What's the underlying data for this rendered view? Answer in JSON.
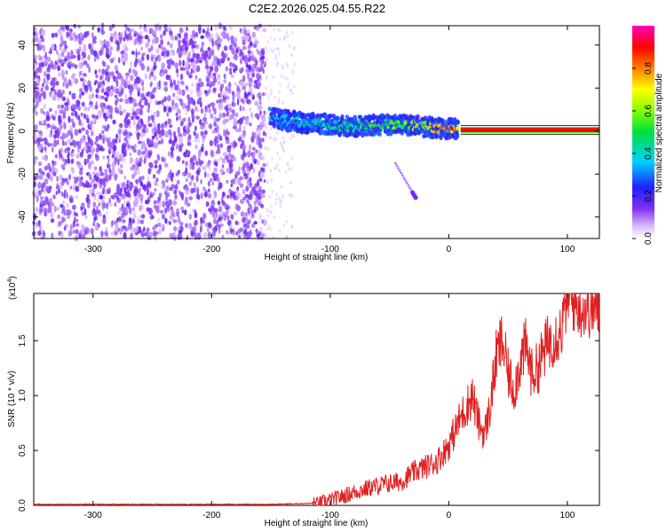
{
  "title": "C2E2.2026.025.04.55.R22",
  "chart_data": [
    {
      "type": "heatmap",
      "xlabel": "Height of straight line (km)",
      "ylabel": "Frequency (Hz)",
      "xlim": [
        -350,
        127
      ],
      "ylim": [
        -50,
        49
      ],
      "xticks": [
        -300,
        -200,
        -100,
        0,
        100
      ],
      "yticks": [
        -40,
        -20,
        0,
        20,
        40
      ],
      "colorbar": {
        "label": "Normalized spectral amplitude",
        "range": [
          0,
          1
        ],
        "ticks": [
          "0.0",
          "0.2",
          "0.4",
          "0.6",
          "0.8"
        ],
        "colormap": "rainbow (white-violet-blue-cyan-green-yellow-red-magenta)"
      },
      "regions": {
        "noise_x": [
          -350,
          -155
        ],
        "sparse_noise_x": [
          -155,
          -130
        ],
        "signal_track": {
          "x": [
            -150,
            -125,
            -100,
            -80,
            -60,
            -40,
            -20,
            0,
            10,
            127
          ],
          "frequency": [
            6,
            4,
            3,
            2,
            3,
            3,
            2,
            1,
            1,
            0
          ],
          "amplitude": [
            0.35,
            0.4,
            0.45,
            0.5,
            0.55,
            0.6,
            0.7,
            0.8,
            0.9,
            0.95
          ]
        },
        "trailing_branch": {
          "x": [
            -45,
            -28
          ],
          "frequency": [
            -15,
            -31
          ]
        }
      }
    },
    {
      "type": "line",
      "xlabel": "Height of straight line (km)",
      "ylabel": "SNR (10 * v/v)",
      "y_multiplier": "(x10",
      "y_multiplier_exp": "4",
      "y_multiplier_close": ")",
      "xlim": [
        -350,
        127
      ],
      "ylim": [
        0,
        1.93
      ],
      "xticks": [
        -300,
        -200,
        -100,
        0,
        100
      ],
      "yticks": [
        "0.0",
        "0.5",
        "1.0",
        "1.5"
      ],
      "color": "#e02020",
      "series": [
        {
          "x": [
            -350,
            -250,
            -150,
            -110,
            -100,
            -90,
            -80,
            -70,
            -60,
            -50,
            -40,
            -30,
            -20,
            -10,
            0,
            10,
            20,
            25,
            30,
            35,
            40,
            45,
            50,
            55,
            60,
            65,
            70,
            75,
            80,
            85,
            90,
            95,
            100,
            110,
            127
          ],
          "y": [
            0.01,
            0.01,
            0.01,
            0.02,
            0.05,
            0.08,
            0.12,
            0.15,
            0.18,
            0.2,
            0.22,
            0.3,
            0.35,
            0.4,
            0.55,
            0.8,
            1.0,
            0.75,
            0.65,
            0.9,
            1.35,
            1.5,
            1.2,
            1.05,
            1.3,
            1.45,
            1.2,
            1.25,
            1.4,
            1.5,
            1.55,
            1.6,
            1.9,
            1.8,
            1.78
          ]
        }
      ]
    }
  ]
}
